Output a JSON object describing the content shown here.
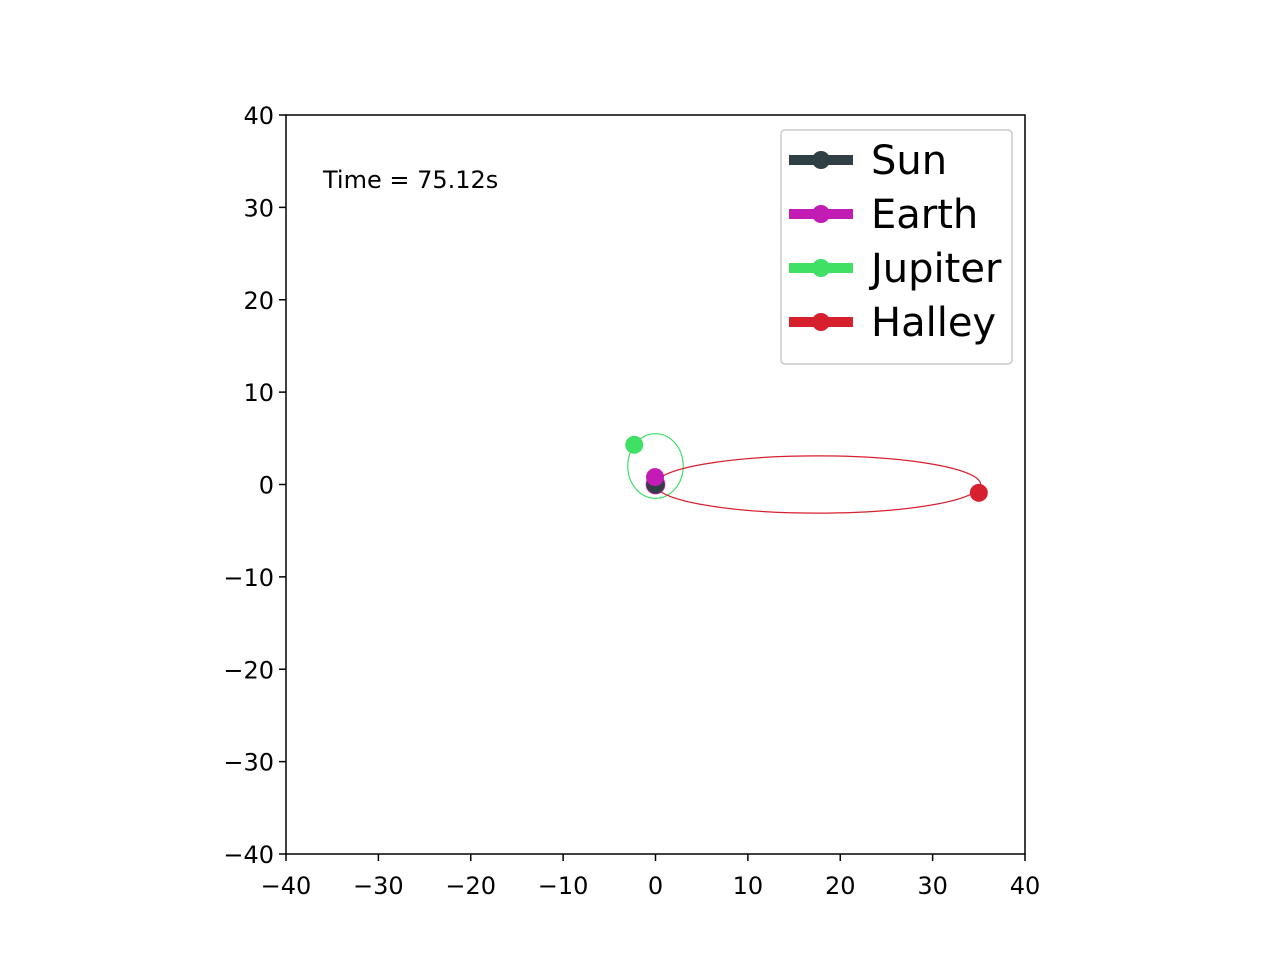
{
  "chart_data": {
    "type": "scatter",
    "title": "",
    "xlabel": "",
    "ylabel": "",
    "xlim": [
      -40,
      40
    ],
    "ylim": [
      -40,
      40
    ],
    "xticks": [
      -40,
      -30,
      -20,
      -10,
      0,
      10,
      20,
      30,
      40
    ],
    "yticks": [
      -40,
      -30,
      -20,
      -10,
      0,
      10,
      20,
      30,
      40
    ],
    "xtick_labels": [
      "−40",
      "−30",
      "−20",
      "−10",
      "0",
      "10",
      "20",
      "30",
      "40"
    ],
    "ytick_labels": [
      "−40",
      "−30",
      "−20",
      "−10",
      "0",
      "10",
      "20",
      "30",
      "40"
    ],
    "grid": false,
    "annotation": "Time = 75.12s",
    "legend_position": "top-right",
    "series": [
      {
        "name": "Sun",
        "color": "#2f3f44",
        "position": [
          0,
          0
        ],
        "orbit": null
      },
      {
        "name": "Earth",
        "color": "#c21cb4",
        "position": [
          -0.05,
          0.8
        ],
        "orbit": {
          "cx": 0,
          "cy": 0,
          "rx": 1,
          "ry": 1
        }
      },
      {
        "name": "Jupiter",
        "color": "#40e065",
        "position": [
          -2.3,
          4.3
        ],
        "orbit": {
          "cx": 0,
          "cy": 2.0,
          "rx": 3.0,
          "ry": 3.5
        }
      },
      {
        "name": "Halley",
        "color": "#d7202e",
        "position": [
          35.0,
          -0.9
        ],
        "orbit": {
          "cx": 17.6,
          "cy": 0,
          "rx": 17.6,
          "ry": 3.1
        }
      }
    ]
  }
}
